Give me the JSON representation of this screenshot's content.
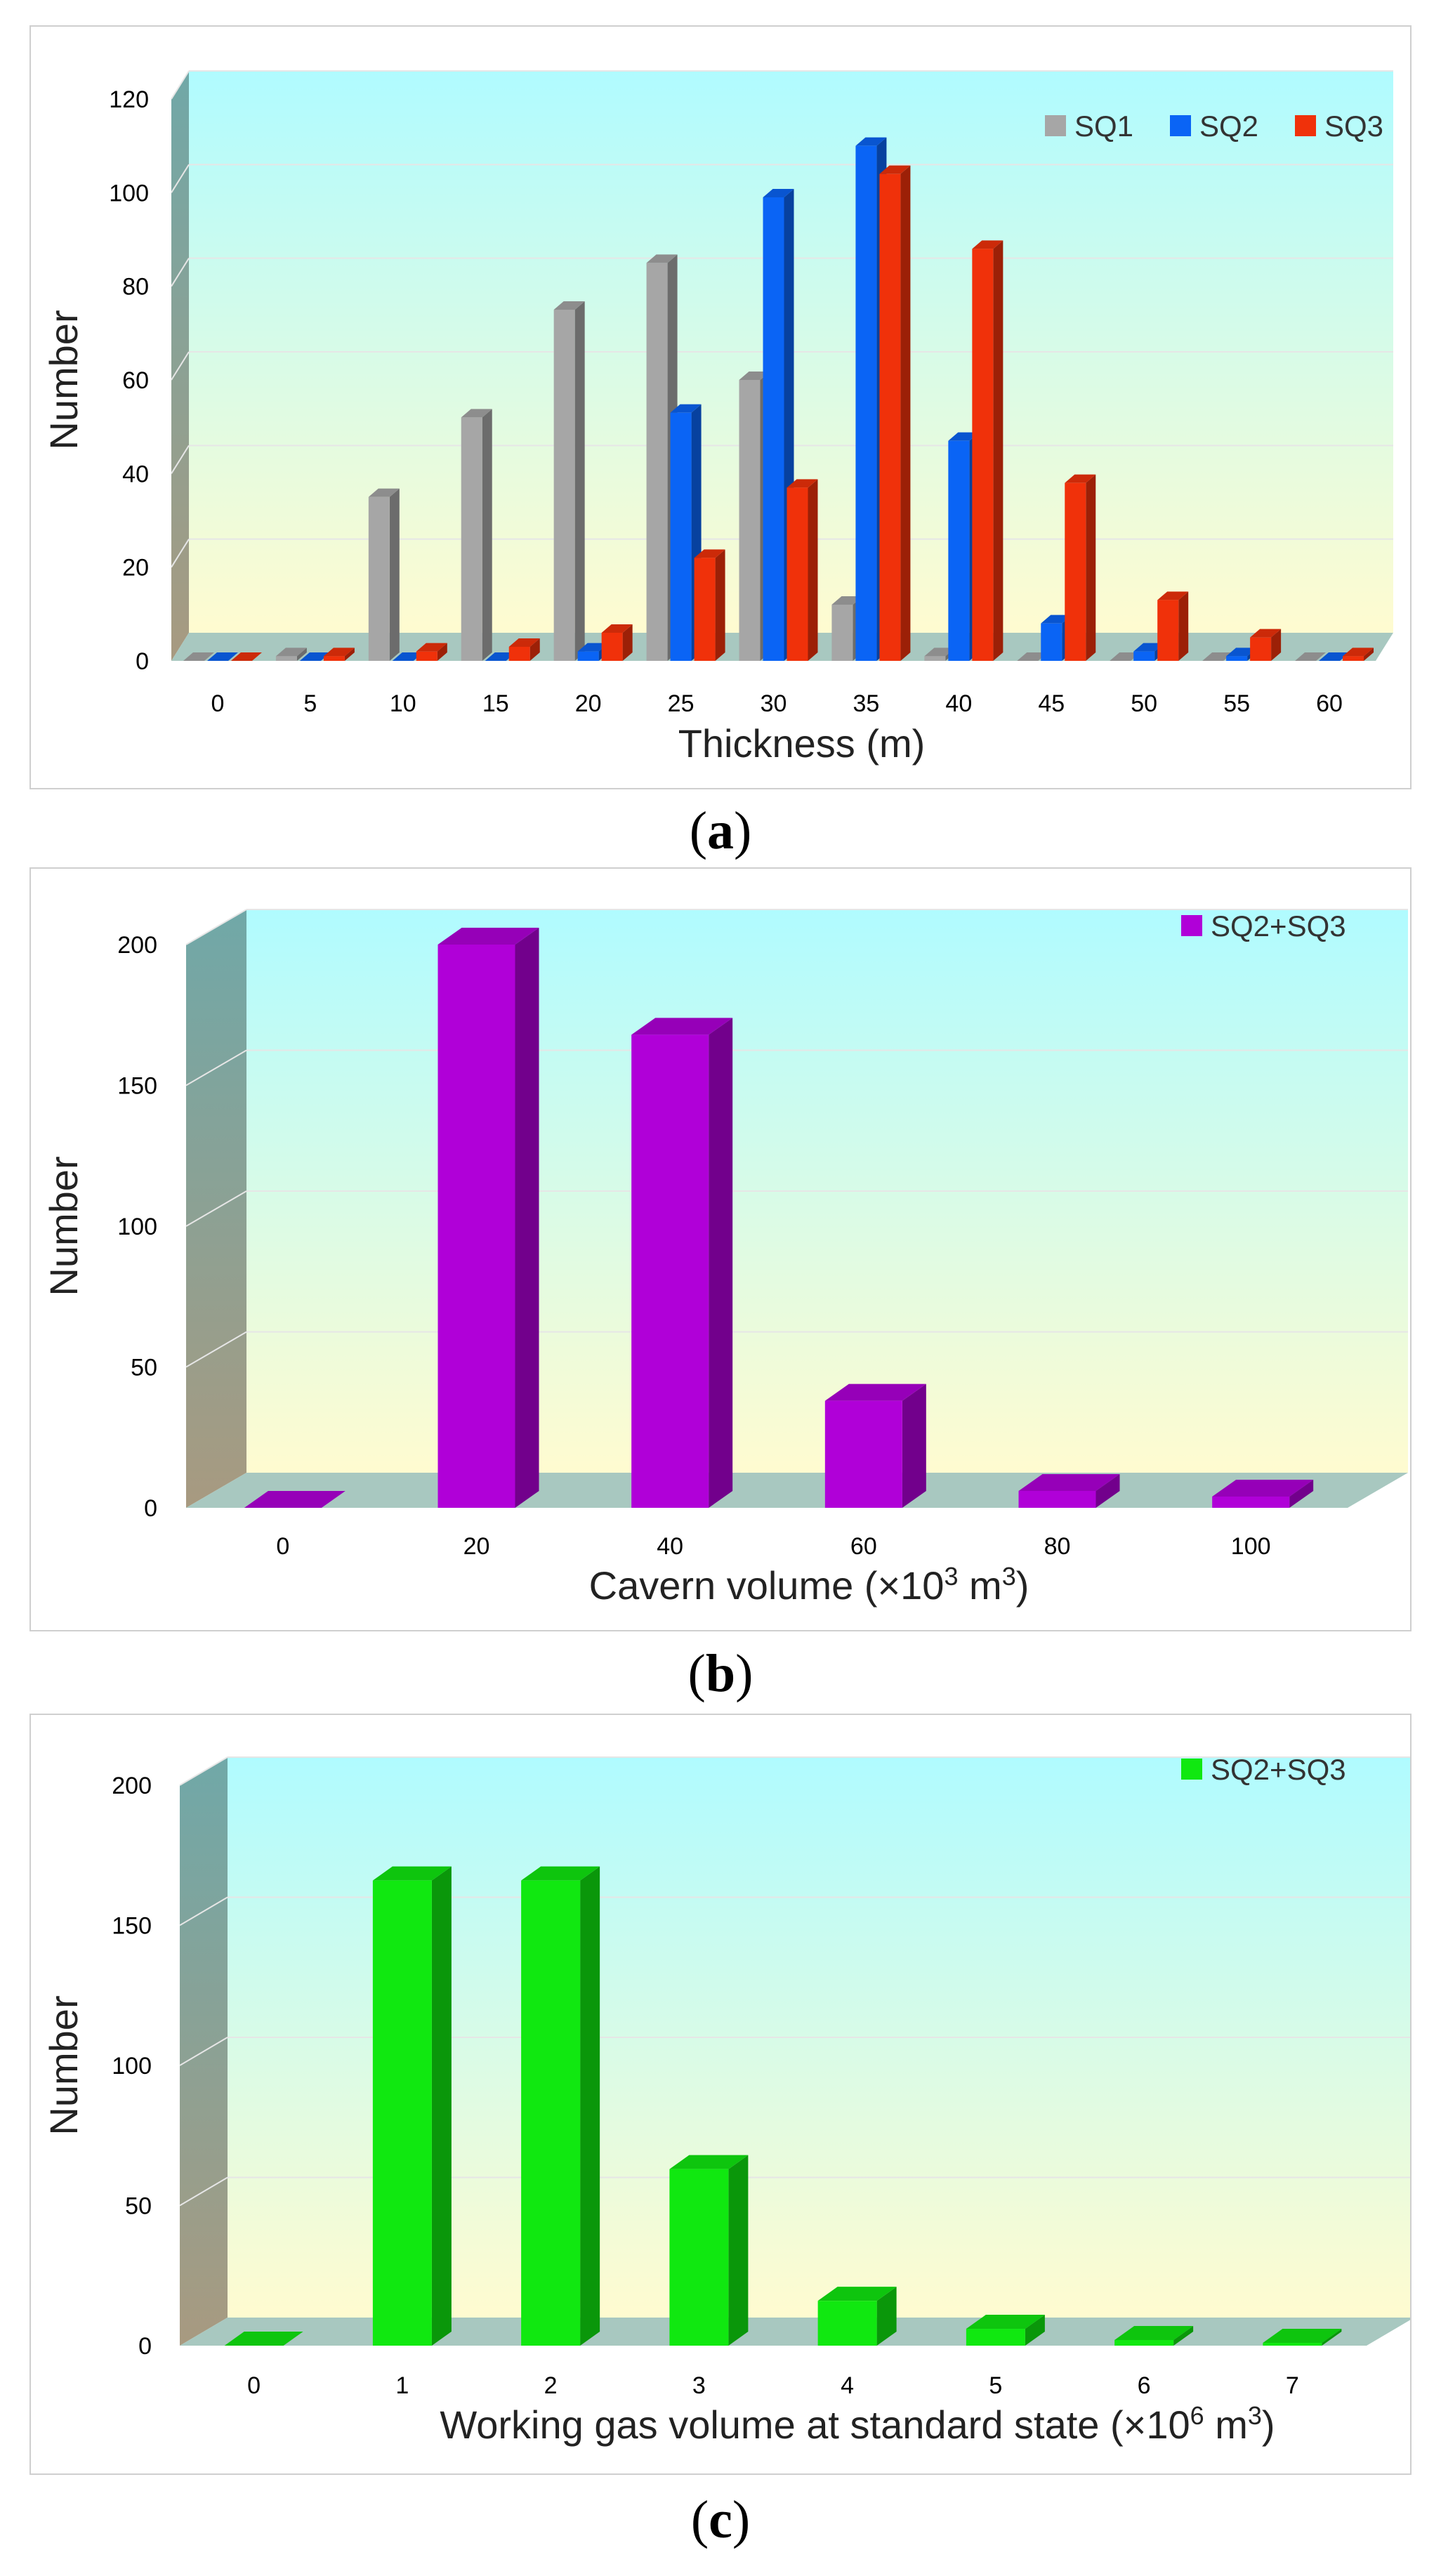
{
  "captions": [
    {
      "open": "(",
      "letter": "a",
      "close": ")"
    },
    {
      "open": "(",
      "letter": "b",
      "close": ")"
    },
    {
      "open": "(",
      "letter": "c",
      "close": ")"
    }
  ],
  "chart_data": [
    {
      "type": "bar",
      "title": "",
      "xlabel": "Thickness (m)",
      "ylabel": "Number",
      "ylim": [
        0,
        120
      ],
      "yticks": [
        0,
        20,
        40,
        60,
        80,
        100,
        120
      ],
      "categories": [
        "0",
        "5",
        "10",
        "15",
        "20",
        "25",
        "30",
        "35",
        "40",
        "45",
        "50",
        "55",
        "60"
      ],
      "legend_position": "top-right",
      "series": [
        {
          "name": "SQ1",
          "color": "#a6a6a6",
          "values": [
            0,
            1,
            35,
            52,
            75,
            85,
            60,
            12,
            1,
            0,
            0,
            0,
            0
          ]
        },
        {
          "name": "SQ2",
          "color": "#0a64f5",
          "values": [
            0,
            0,
            0,
            0,
            2,
            53,
            99,
            110,
            47,
            8,
            2,
            1,
            0
          ]
        },
        {
          "name": "SQ3",
          "color": "#f0310a",
          "values": [
            0,
            1,
            2,
            3,
            6,
            22,
            37,
            104,
            88,
            38,
            13,
            5,
            1
          ]
        }
      ]
    },
    {
      "type": "bar",
      "title": "",
      "xlabel": "Cavern volume (×10³ m³)",
      "xlabel_parts": {
        "pre": "Cavern volume (×10",
        "sup1": "3",
        "mid": " m",
        "sup2": "3",
        "post": ")"
      },
      "ylabel": "Number",
      "ylim": [
        0,
        200
      ],
      "yticks": [
        0,
        50,
        100,
        150,
        200
      ],
      "categories": [
        "0",
        "20",
        "40",
        "60",
        "80",
        "100"
      ],
      "legend_position": "top-right",
      "series": [
        {
          "name": "SQ2+SQ3",
          "color": "#b000d8",
          "values": [
            0,
            200,
            168,
            38,
            6,
            4
          ]
        }
      ]
    },
    {
      "type": "bar",
      "title": "",
      "xlabel": "Working gas volume at standard state (×10⁶ m³)",
      "xlabel_parts": {
        "pre": "Working gas volume at standard state (×10",
        "sup1": "6",
        "mid": " m",
        "sup2": "3",
        "post": ")"
      },
      "ylabel": "Number",
      "ylim": [
        0,
        200
      ],
      "yticks": [
        0,
        50,
        100,
        150,
        200
      ],
      "categories": [
        "0",
        "1",
        "2",
        "3",
        "4",
        "5",
        "6",
        "7"
      ],
      "legend_position": "top-right",
      "series": [
        {
          "name": "SQ2+SQ3",
          "color": "#10e810",
          "values": [
            0,
            166,
            166,
            63,
            16,
            6,
            2,
            1
          ]
        }
      ]
    }
  ]
}
